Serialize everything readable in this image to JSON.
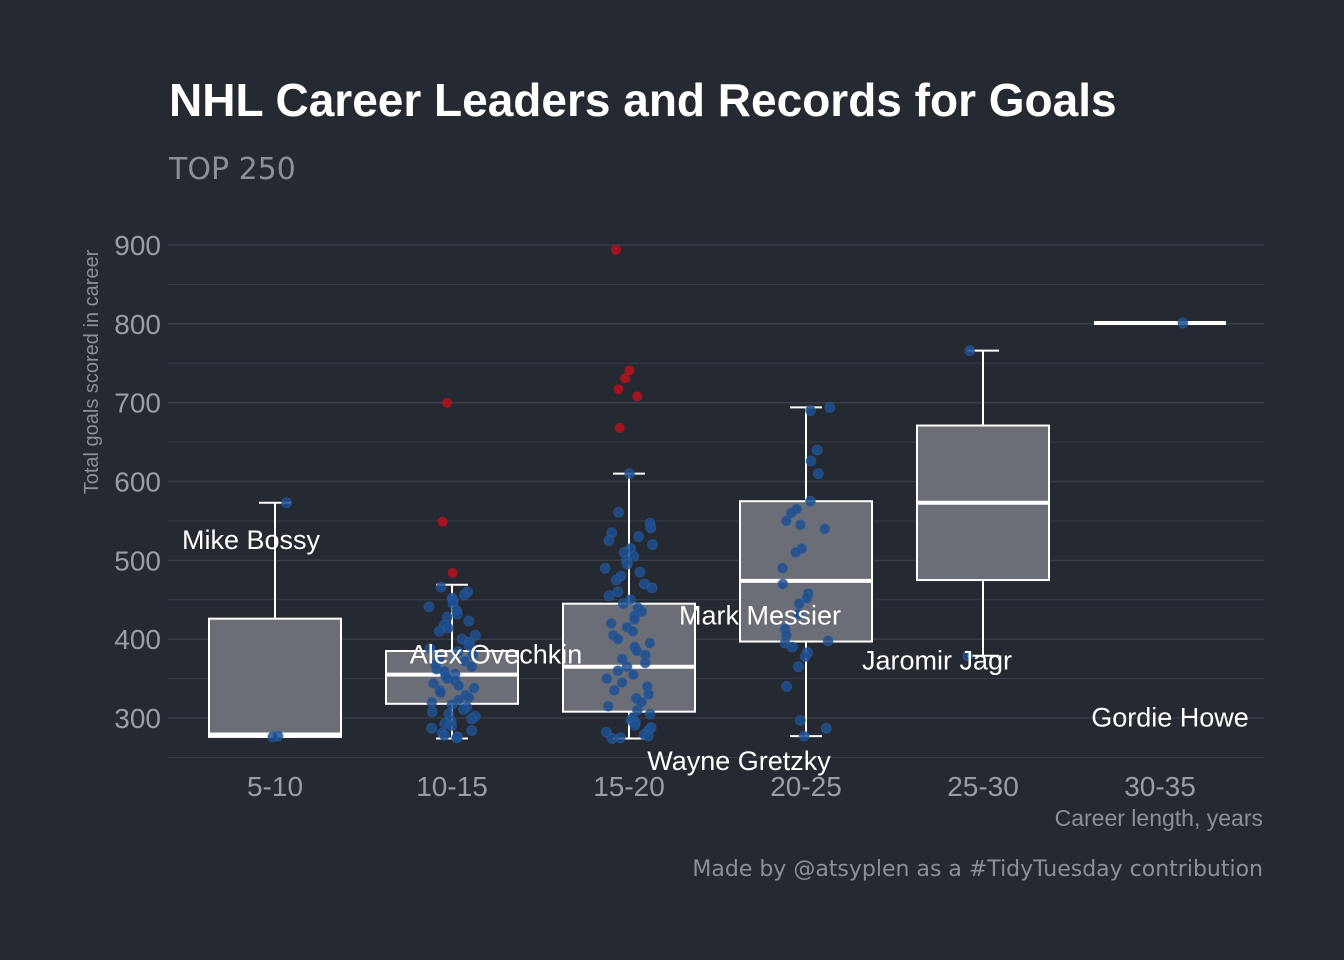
{
  "chart_data": {
    "type": "box",
    "title": "NHL Career Leaders and Records for Goals",
    "subtitle": "TOP 250",
    "xlabel": "Career length, years",
    "ylabel": "Total goals scored in career",
    "caption": "Made by @atsyplen as a #TidyTuesday contribution",
    "categories": [
      "5-10",
      "10-15",
      "15-20",
      "20-25",
      "25-30",
      "30-35"
    ],
    "ylim": [
      250,
      945
    ],
    "yticks": [
      300,
      400,
      500,
      600,
      700,
      800,
      900
    ],
    "grid": true,
    "colors": {
      "background": "#252932",
      "box_fill": "#6b6e76",
      "box_line": "#ffffff",
      "point": "#1f4f8f",
      "outlier": "#b0121d",
      "grid": "#3b3f48"
    },
    "boxes": [
      {
        "category": "5-10",
        "whisker_low": 276,
        "q1": 276,
        "median": 279,
        "q3": 426,
        "whisker_high": 573
      },
      {
        "category": "10-15",
        "whisker_low": 274,
        "q1": 318,
        "median": 355,
        "q3": 385,
        "whisker_high": 469
      },
      {
        "category": "15-20",
        "whisker_low": 274,
        "q1": 308,
        "median": 365,
        "q3": 445,
        "whisker_high": 610
      },
      {
        "category": "20-25",
        "whisker_low": 277,
        "q1": 397,
        "median": 474,
        "q3": 575,
        "whisker_high": 694
      },
      {
        "category": "25-30",
        "whisker_low": 379,
        "q1": 475,
        "median": 573,
        "q3": 671,
        "whisker_high": 766
      },
      {
        "category": "30-35",
        "whisker_low": 801,
        "q1": 801,
        "median": 801,
        "q3": 801,
        "whisker_high": 801
      }
    ],
    "points": [
      {
        "category": "5-10",
        "values": [
          573,
          277,
          276
        ]
      },
      {
        "category": "10-15",
        "values": [
          466,
          460,
          456,
          452,
          449,
          445,
          441,
          436,
          432,
          428,
          423,
          418,
          414,
          410,
          405,
          400,
          396,
          392,
          388,
          384,
          380,
          376,
          372,
          368,
          365,
          362,
          359,
          356,
          353,
          350,
          347,
          344,
          341,
          338,
          335,
          332,
          329,
          326,
          323,
          320,
          317,
          314,
          311,
          308,
          305,
          302,
          299,
          296,
          293,
          290,
          287,
          284,
          281,
          278,
          276,
          275
        ]
      },
      {
        "category": "15-20",
        "values": [
          610,
          561,
          547,
          541,
          535,
          530,
          525,
          520,
          515,
          510,
          505,
          500,
          495,
          490,
          485,
          480,
          475,
          470,
          465,
          460,
          455,
          450,
          445,
          440,
          435,
          430,
          425,
          420,
          415,
          410,
          405,
          400,
          395,
          390,
          385,
          380,
          375,
          370,
          365,
          360,
          355,
          350,
          345,
          340,
          335,
          330,
          325,
          320,
          315,
          310,
          305,
          300,
          297,
          294,
          291,
          288,
          285,
          282,
          279,
          277,
          275,
          274
        ]
      },
      {
        "category": "20-25",
        "values": [
          694,
          690,
          640,
          626,
          610,
          575,
          565,
          560,
          550,
          545,
          540,
          515,
          510,
          490,
          470,
          458,
          452,
          445,
          432,
          413,
          405,
          398,
          395,
          390,
          383,
          378,
          365,
          340,
          297,
          287,
          277
        ]
      },
      {
        "category": "25-30",
        "values": [
          766,
          379
        ]
      },
      {
        "category": "30-35",
        "values": [
          801
        ]
      }
    ],
    "outliers": [
      {
        "category": "10-15",
        "values": [
          700,
          549,
          484
        ]
      },
      {
        "category": "15-20",
        "values": [
          894,
          741,
          731,
          717,
          708,
          668
        ]
      }
    ],
    "annotations": [
      {
        "label": "Mike Bossy",
        "category": "5-10",
        "y": 527
      },
      {
        "label": "Alex Ovechkin",
        "category": "10-15",
        "y": 382
      },
      {
        "label": "Wayne Gretzky",
        "category": "15-20",
        "y": 247
      },
      {
        "label": "Mark Messier",
        "category": "20-25",
        "y": 431
      },
      {
        "label": "Jaromir Jagr",
        "category": "25-30",
        "y": 374
      },
      {
        "label": "Gordie Howe",
        "category": "30-35",
        "y": 302
      }
    ]
  }
}
